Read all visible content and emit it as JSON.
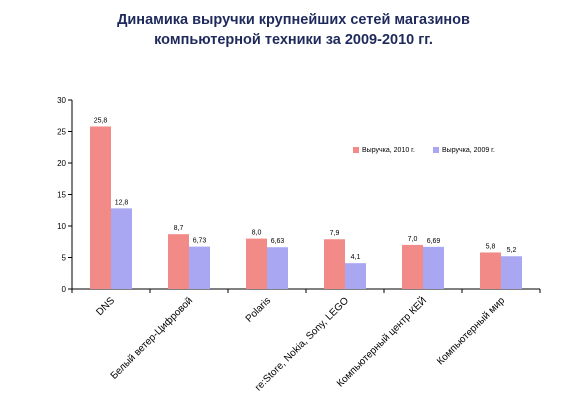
{
  "title": {
    "line1": "Динамика выручки крупнейших сетей магазинов",
    "line2": "компьютерной техники за 2009-2010 гг."
  },
  "chart_data": {
    "type": "bar",
    "categories": [
      "DNS",
      "Белый ветер-Цифровой",
      "Polaris",
      "re:Store, Nokia, Sony, LEGO",
      "Компьютерный центр КЕЙ",
      "Компьютерный мир"
    ],
    "series": [
      {
        "name": "Выручка, 2010 г.",
        "color": "#f28b87",
        "values": [
          25.8,
          8.7,
          8.0,
          7.9,
          7.0,
          5.8
        ],
        "labels": [
          "25,8",
          "8,7",
          "8,0",
          "7,9",
          "7,0",
          "5,8"
        ]
      },
      {
        "name": "Выручка, 2009 г.",
        "color": "#a9a6f2",
        "values": [
          12.8,
          6.73,
          6.63,
          4.1,
          6.69,
          5.2
        ],
        "labels": [
          "12,8",
          "6,73",
          "6,63",
          "4,1",
          "6,69",
          "5,2"
        ]
      }
    ],
    "ylim": [
      0,
      30
    ],
    "yticks": [
      0,
      5,
      10,
      15,
      20,
      25,
      30
    ],
    "grid": false,
    "legend_position": "upper-right"
  }
}
